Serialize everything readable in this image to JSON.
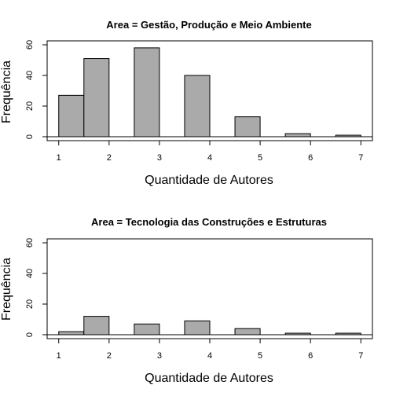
{
  "chart_data": [
    {
      "type": "bar",
      "title": "Area = Gestão, Produção e Meio Ambiente",
      "xlabel": "Quantidade de Autores",
      "ylabel": "Frequência",
      "bins": [
        {
          "start": 1.0,
          "end": 1.5,
          "value": 27
        },
        {
          "start": 1.5,
          "end": 2.0,
          "value": 51
        },
        {
          "start": 2.0,
          "end": 2.5,
          "value": 0
        },
        {
          "start": 2.5,
          "end": 3.0,
          "value": 58
        },
        {
          "start": 3.0,
          "end": 3.5,
          "value": 0
        },
        {
          "start": 3.5,
          "end": 4.0,
          "value": 40
        },
        {
          "start": 4.0,
          "end": 4.5,
          "value": 0
        },
        {
          "start": 4.5,
          "end": 5.0,
          "value": 13
        },
        {
          "start": 5.0,
          "end": 5.5,
          "value": 0
        },
        {
          "start": 5.5,
          "end": 6.0,
          "value": 2
        },
        {
          "start": 6.0,
          "end": 6.5,
          "value": 0
        },
        {
          "start": 6.5,
          "end": 7.0,
          "value": 1
        }
      ],
      "xticks": [
        1,
        2,
        3,
        4,
        5,
        6,
        7
      ],
      "yticks": [
        0,
        20,
        40,
        60
      ],
      "xlim": [
        1,
        7
      ],
      "ylim": [
        0,
        60
      ],
      "grid": false
    },
    {
      "type": "bar",
      "title": "Area = Tecnologia das Construções e Estruturas",
      "xlabel": "Quantidade de Autores",
      "ylabel": "Frequência",
      "bins": [
        {
          "start": 1.0,
          "end": 1.5,
          "value": 2
        },
        {
          "start": 1.5,
          "end": 2.0,
          "value": 12
        },
        {
          "start": 2.0,
          "end": 2.5,
          "value": 0
        },
        {
          "start": 2.5,
          "end": 3.0,
          "value": 7
        },
        {
          "start": 3.0,
          "end": 3.5,
          "value": 0
        },
        {
          "start": 3.5,
          "end": 4.0,
          "value": 9
        },
        {
          "start": 4.0,
          "end": 4.5,
          "value": 0
        },
        {
          "start": 4.5,
          "end": 5.0,
          "value": 4
        },
        {
          "start": 5.0,
          "end": 5.5,
          "value": 0
        },
        {
          "start": 5.5,
          "end": 6.0,
          "value": 1
        },
        {
          "start": 6.0,
          "end": 6.5,
          "value": 0
        },
        {
          "start": 6.5,
          "end": 7.0,
          "value": 1
        }
      ],
      "xticks": [
        1,
        2,
        3,
        4,
        5,
        6,
        7
      ],
      "yticks": [
        0,
        20,
        40,
        60
      ],
      "xlim": [
        1,
        7
      ],
      "ylim": [
        0,
        60
      ],
      "grid": false
    }
  ],
  "colors": {
    "bar_fill": "#aaaaaa",
    "bar_stroke": "#000000",
    "background": "#ffffff"
  }
}
